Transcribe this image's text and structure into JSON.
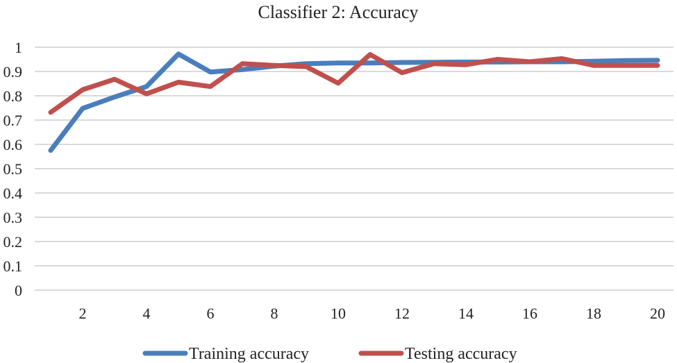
{
  "chart_data": {
    "type": "line",
    "title": "Classifier 2: Accuracy",
    "xlabel": "",
    "ylabel": "",
    "x": [
      1,
      2,
      3,
      4,
      5,
      6,
      7,
      8,
      9,
      10,
      11,
      12,
      13,
      14,
      15,
      16,
      17,
      18,
      19,
      20
    ],
    "x_ticks": [
      2,
      4,
      6,
      8,
      10,
      12,
      14,
      16,
      18,
      20
    ],
    "y_ticks": [
      "0",
      "0.1",
      "0.2",
      "0.3",
      "0.4",
      "0.5",
      "0.6",
      "0.7",
      "0.8",
      "0.9",
      "1"
    ],
    "xlim": [
      0.5,
      20.5
    ],
    "ylim": [
      0,
      1
    ],
    "grid": true,
    "legend_position": "bottom",
    "series": [
      {
        "name": "Training accuracy",
        "color": "#4a7ebb",
        "values": [
          0.575,
          0.748,
          0.795,
          0.838,
          0.972,
          0.898,
          0.908,
          0.922,
          0.932,
          0.935,
          0.935,
          0.937,
          0.938,
          0.939,
          0.939,
          0.94,
          0.94,
          0.942,
          0.945,
          0.946
        ]
      },
      {
        "name": "Testing accuracy",
        "color": "#c0504d",
        "values": [
          0.732,
          0.825,
          0.868,
          0.808,
          0.856,
          0.838,
          0.932,
          0.925,
          0.92,
          0.852,
          0.97,
          0.895,
          0.932,
          0.928,
          0.95,
          0.94,
          0.953,
          0.925,
          0.925,
          0.925
        ]
      }
    ]
  }
}
